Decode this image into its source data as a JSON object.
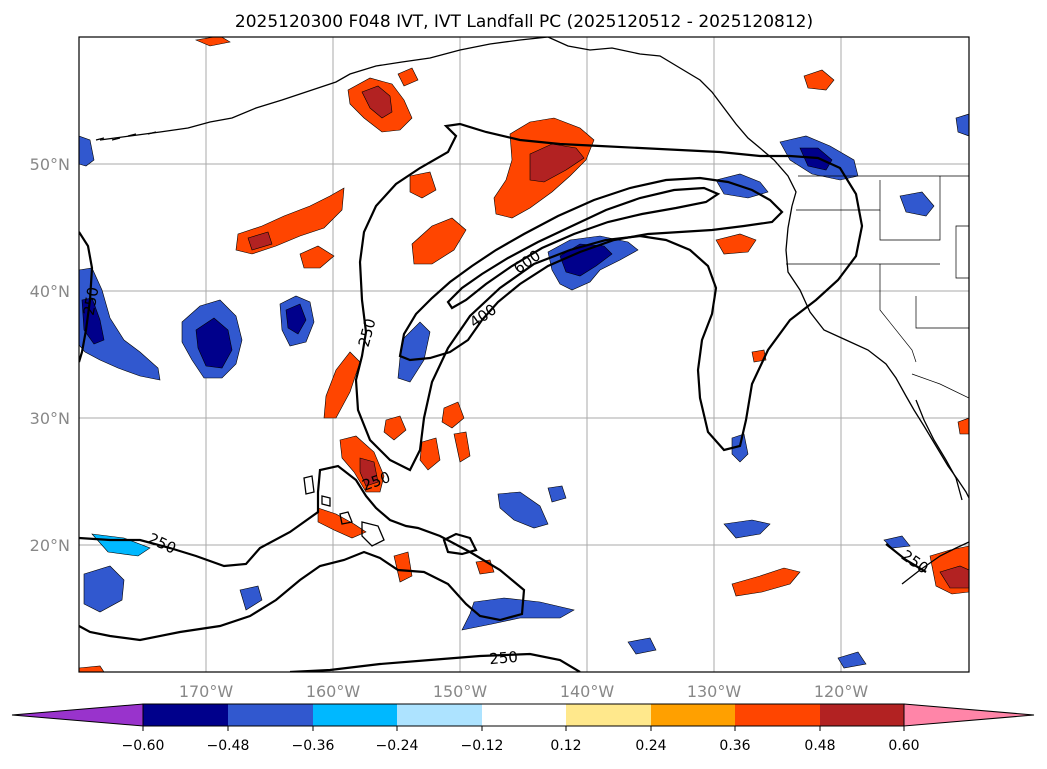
{
  "title": "2025120300 F048 IVT, IVT Landfall PC (2025120512 - 2025120812)",
  "map": {
    "lat_labels": [
      "50°N",
      "40°N",
      "30°N",
      "20°N"
    ],
    "lon_labels": [
      "170°W",
      "160°W",
      "150°W",
      "140°W",
      "130°W",
      "120°W"
    ],
    "grid_lats": [
      50,
      40,
      30,
      20
    ],
    "grid_lons": [
      -170,
      -160,
      -150,
      -140,
      -130,
      -120
    ],
    "extent": {
      "lon_min": -180,
      "lon_max": -110,
      "lat_min": 10,
      "lat_max": 60
    },
    "contour_labels": [
      "250",
      "250",
      "250",
      "250",
      "250",
      "250",
      "400",
      "600"
    ]
  },
  "colorbar": {
    "ticks": [
      "−0.60",
      "−0.48",
      "−0.36",
      "−0.24",
      "−0.12",
      "0.12",
      "0.24",
      "0.36",
      "0.48",
      "0.60"
    ],
    "colors": [
      "#9933cc",
      "#00008b",
      "#3158cf",
      "#00b8ff",
      "#ade3ff",
      "#ffffff",
      "#ffe88c",
      "#ffa000",
      "#ff4500",
      "#b22222",
      "#ff85a8"
    ]
  },
  "colors": {
    "neg_strong": "#00008b",
    "neg_mid": "#3158cf",
    "neg_weak": "#00b8ff",
    "neg_faint": "#ade3ff",
    "pos_faint": "#ffe88c",
    "pos_weak": "#ffa000",
    "pos_mid": "#ff4500",
    "pos_strong": "#b22222"
  }
}
